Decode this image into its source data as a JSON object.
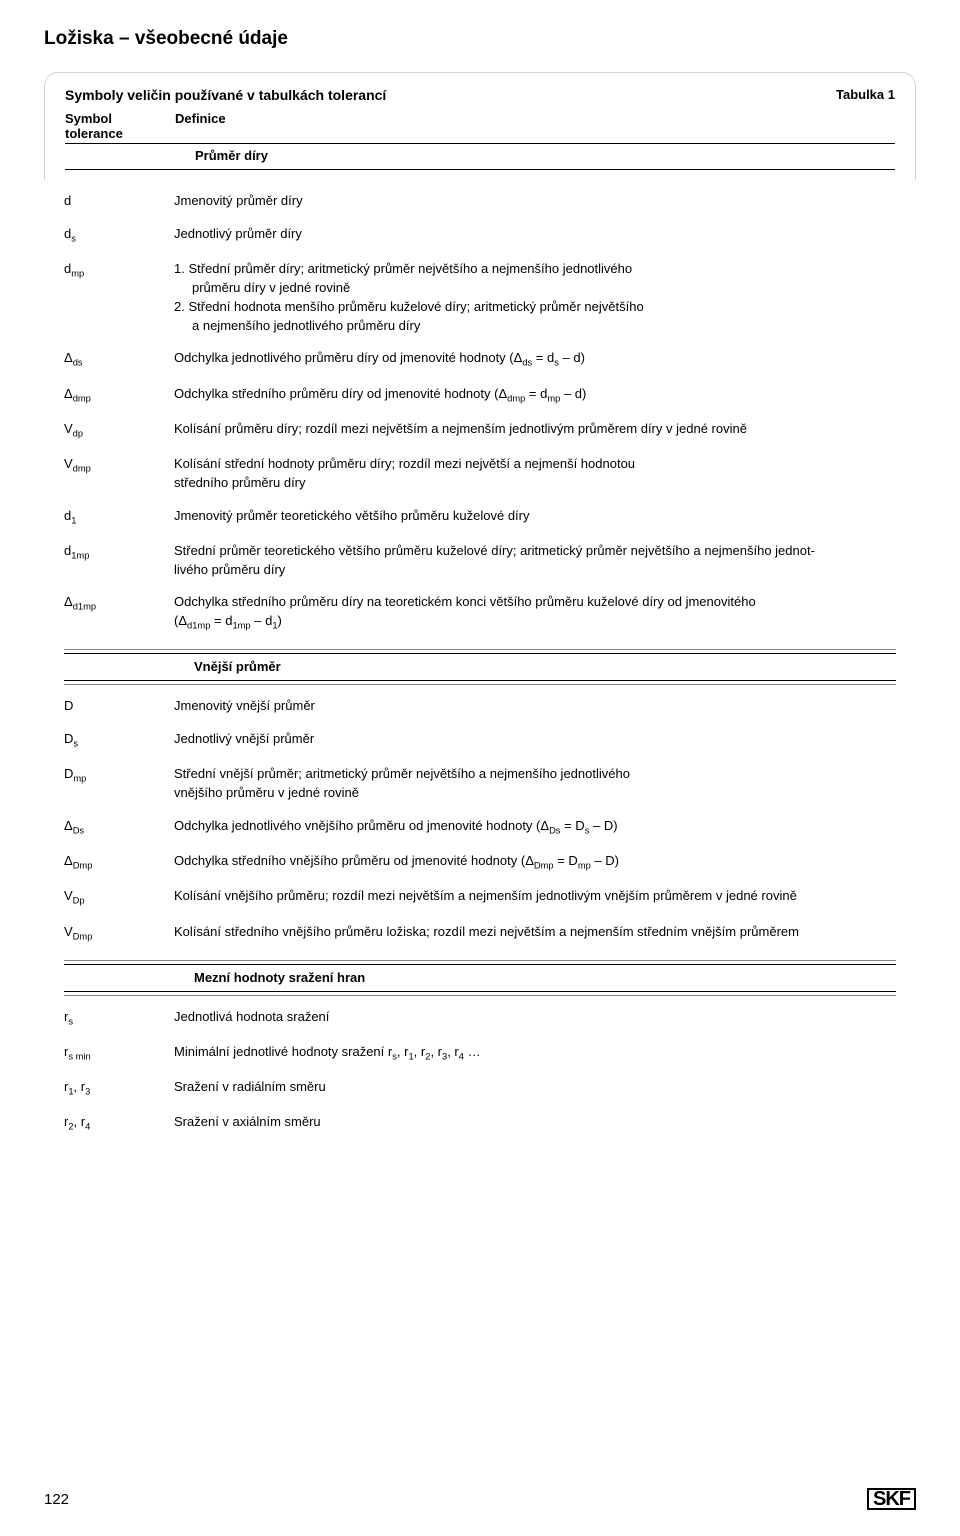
{
  "page_title": "Ložiska – všeobecné údaje",
  "table_label": "Tabulka 1",
  "card_title": "Symboly veličin používané v tabulkách tolerancí",
  "header": {
    "c1a": "Symbol",
    "c1b": "tolerance",
    "c2": "Definice"
  },
  "sections": {
    "s1": "Průměr díry",
    "s2": "Vnější průměr",
    "s3": "Mezní hodnoty sražení hran"
  },
  "rows": {
    "d": {
      "sym": "d",
      "def": "Jmenovitý průměr díry"
    },
    "ds": {
      "sym": "d<sub>s</sub>",
      "def": "Jednotlivý průměr díry"
    },
    "dmp": {
      "sym": "d<sub>mp</sub>",
      "def1": "1. Střední průměr díry; aritmetický průměr největšího a nejmenšího jednotlivého",
      "def1b": "průměru díry v jedné rovině",
      "def2": "2. Střední hodnota menšího průměru kuželové díry; aritmetický průměr největšího",
      "def2b": "a nejmenšího jednotlivého průměru díry"
    },
    "Dds": {
      "sym": "Δ<sub>ds</sub>",
      "def": "Odchylka jednotlivého průměru díry od jmenovité hodnoty (Δ<sub>ds</sub> = d<sub>s</sub> – d)"
    },
    "Ddmp": {
      "sym": "Δ<sub>dmp</sub>",
      "def": "Odchylka středního průměru díry od jmenovité hodnoty (Δ<sub>dmp</sub> = d<sub>mp</sub> – d)"
    },
    "Vdp": {
      "sym": "V<sub>dp</sub>",
      "def": "Kolísání průměru díry; rozdíl mezi největším a nejmenším jednotlivým průměrem díry v jedné rovině"
    },
    "Vdmp": {
      "sym": "V<sub>dmp</sub>",
      "def1": "Kolísání střední hodnoty průměru díry; rozdíl mezi největší a nejmenší hodnotou",
      "def2": "středního průměru díry"
    },
    "d1": {
      "sym": "d<sub>1</sub>",
      "def": "Jmenovitý průměr teoretického většího průměru kuželové díry"
    },
    "d1mp": {
      "sym": "d<sub>1mp</sub>",
      "def1": "Střední průměr teoretického většího průměru kuželové díry; aritmetický průměr největšího a nejmenšího jednot-",
      "def2": "livého průměru díry"
    },
    "Dd1mp": {
      "sym": "Δ<sub>d1mp</sub>",
      "def1": "Odchylka středního průměru díry na teoretickém konci většího průměru kuželové díry od jmenovitého",
      "def2": "(Δ<sub>d1mp</sub> = d<sub>1mp</sub> – d<sub>1</sub>)"
    },
    "D": {
      "sym": "D",
      "def": "Jmenovitý vnější průměr"
    },
    "Ds": {
      "sym": "D<sub>s</sub>",
      "def": "Jednotlivý vnější průměr"
    },
    "Dmp": {
      "sym": "D<sub>mp</sub>",
      "def1": "Střední vnější průměr; aritmetický průměr největšího a nejmenšího jednotlivého",
      "def2": "vnějšího průměru v jedné rovině"
    },
    "DDs": {
      "sym": "Δ<sub>Ds</sub>",
      "def": "Odchylka jednotlivého vnějšího průměru od jmenovité hodnoty (Δ<sub>Ds</sub> = D<sub>s</sub> – D)"
    },
    "DDmp": {
      "sym": "Δ<sub>Dmp</sub>",
      "def": "Odchylka středního vnějšího průměru od jmenovité hodnoty (Δ<sub>Dmp</sub> = D<sub>mp</sub> – D)"
    },
    "VDp": {
      "sym": "V<sub>Dp</sub>",
      "def": "Kolísání vnějšího průměru; rozdíl mezi největším a nejmenším jednotlivým vnějším průměrem v jedné rovině"
    },
    "VDmp": {
      "sym": "V<sub>Dmp</sub>",
      "def": "Kolísání středního vnějšího průměru ložiska; rozdíl mezi největším a nejmenším středním vnějším průměrem"
    },
    "rs": {
      "sym": "r<sub>s</sub>",
      "def": "Jednotlivá hodnota sražení"
    },
    "rsmin": {
      "sym": "r<sub>s min</sub>",
      "def": "Minimální jednotlivé hodnoty sražení r<sub>s</sub>, r<sub>1</sub>, r<sub>2</sub>, r<sub>3</sub>, r<sub>4</sub> …"
    },
    "r1r3": {
      "sym": "r<sub>1</sub>, r<sub>3</sub>",
      "def": "Sražení v radiálním směru"
    },
    "r2r4": {
      "sym": "r<sub>2</sub>, r<sub>4</sub>",
      "def": "Sražení v axiálním směru"
    }
  },
  "page_number": "122",
  "logo": "SKF"
}
